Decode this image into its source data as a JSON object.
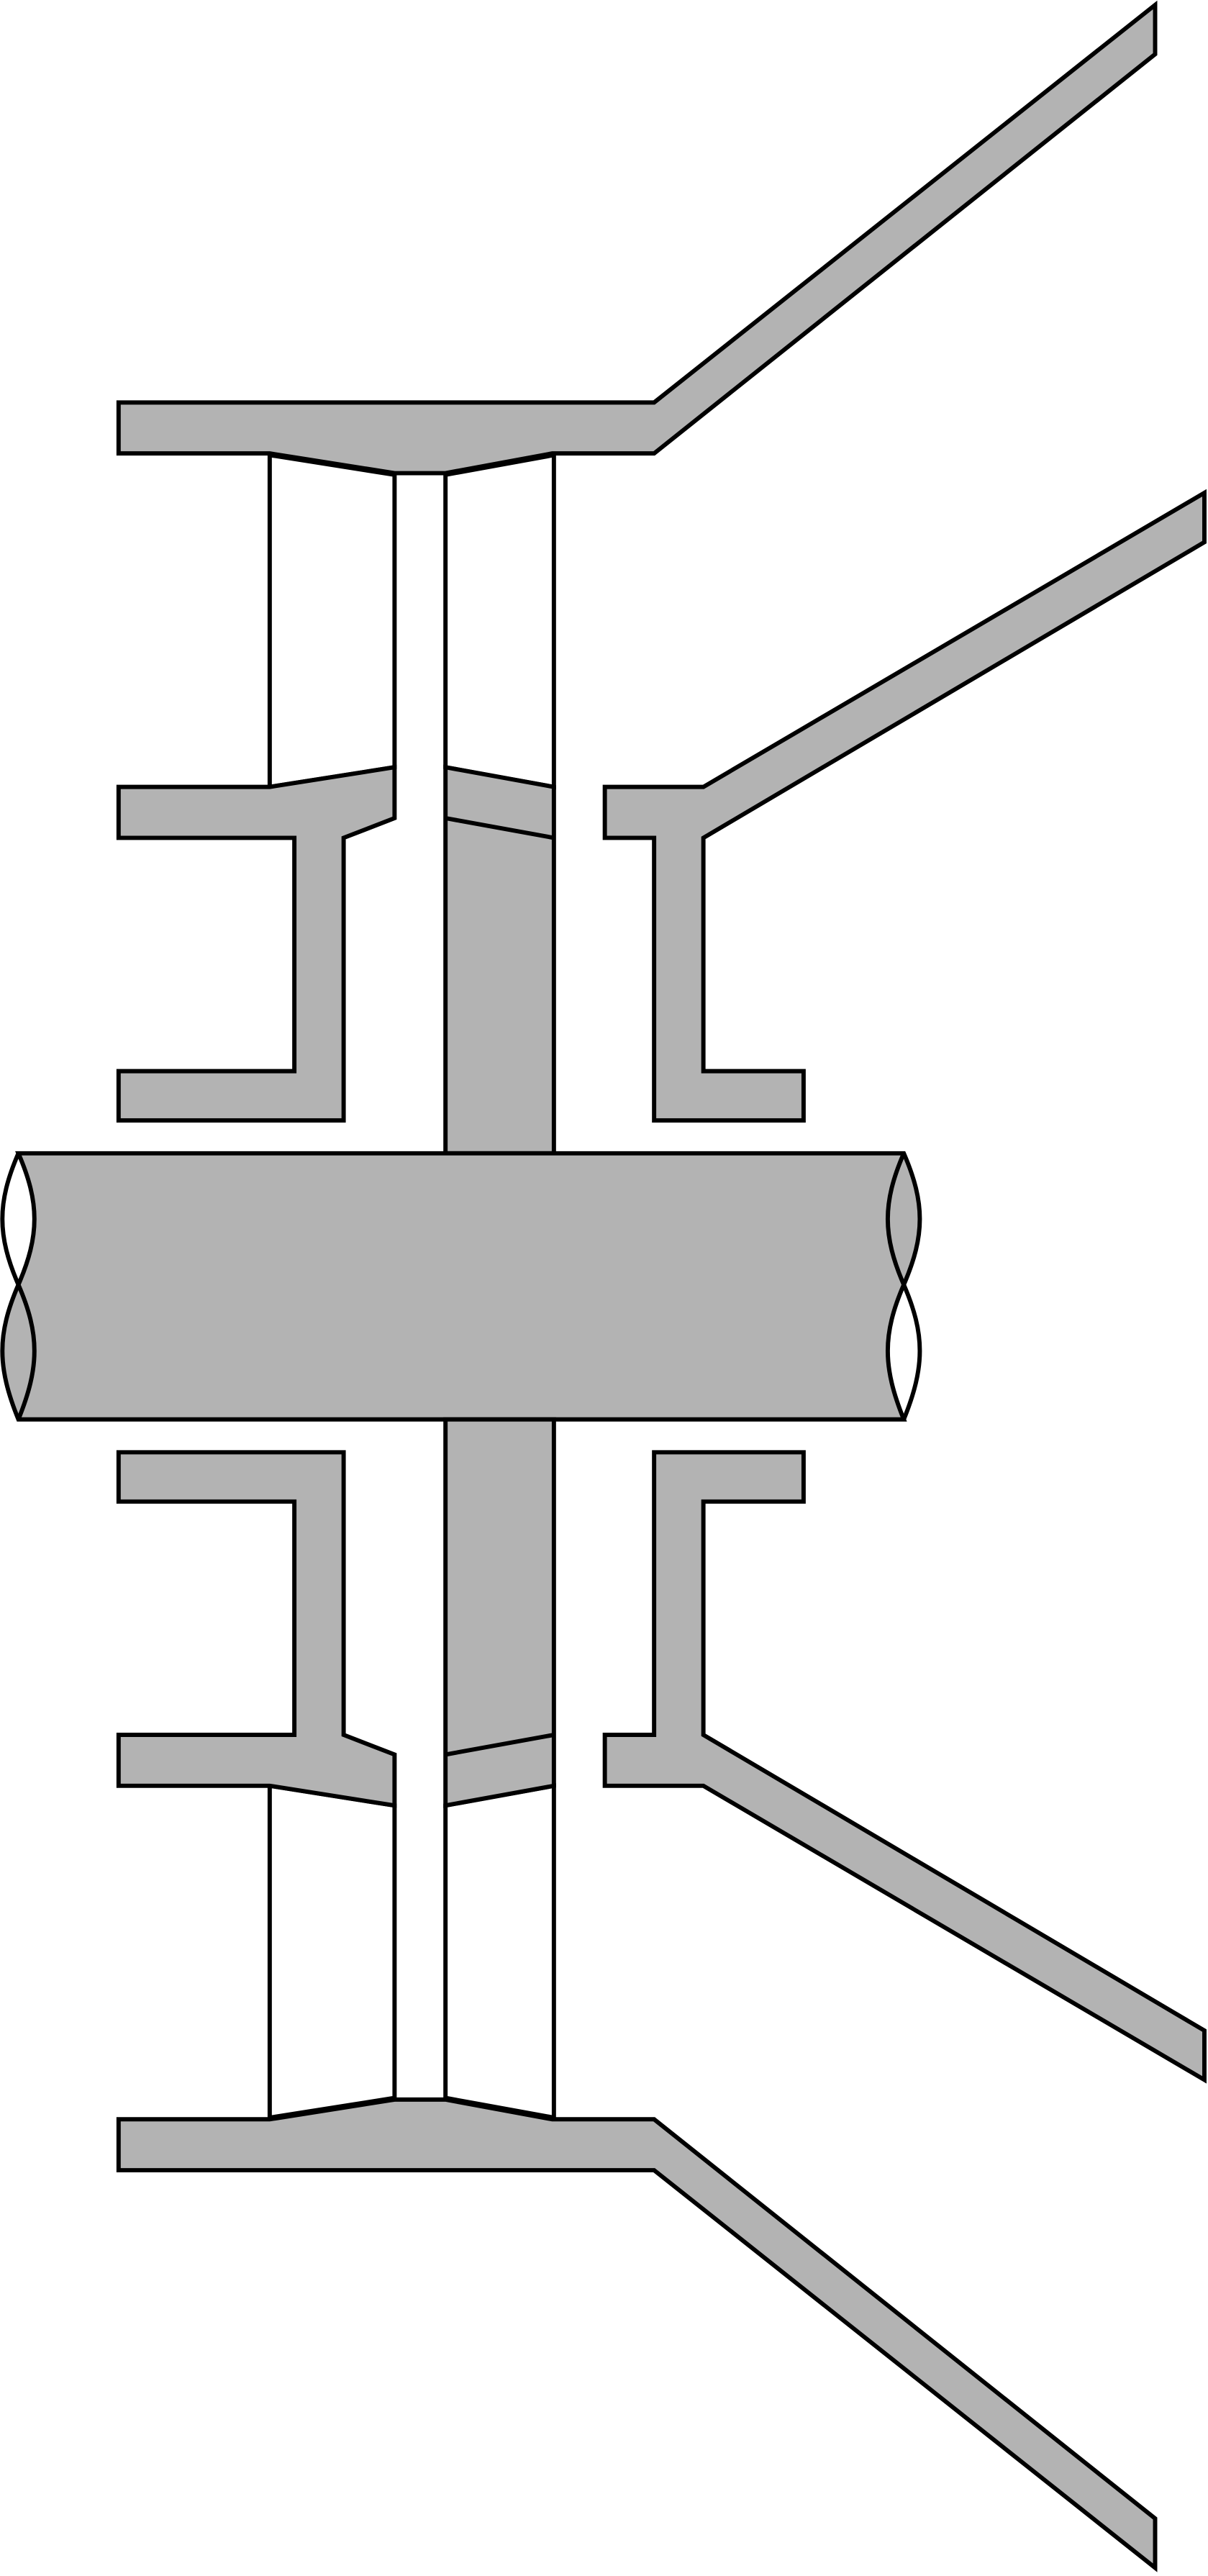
{
  "diagram": {
    "colors": {
      "background": "#ffffff",
      "fill": "#b3b3b3",
      "stroke": "#000000"
    }
  }
}
